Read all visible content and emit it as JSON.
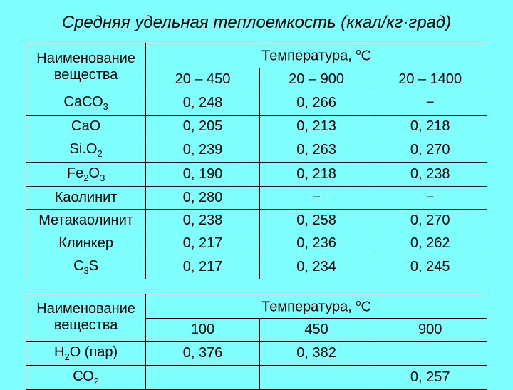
{
  "title": "Средняя удельная теплоемкость (ккал/кг·град)",
  "h1": {
    "name": "Наименование вещества",
    "temp": "Температура, ",
    "tempUnit": "С"
  },
  "t1": {
    "ranges": [
      "20 – 450",
      "20 – 900",
      "20 – 1400"
    ],
    "rows": [
      {
        "name": "СаСО",
        "sub": "3",
        "v": [
          "0, 248",
          "0, 266",
          "−"
        ]
      },
      {
        "name": "СаО",
        "sub": "",
        "v": [
          "0, 205",
          "0, 213",
          "0, 218"
        ]
      },
      {
        "name": "Si.O",
        "sub": "2",
        "v": [
          "0, 239",
          "0, 263",
          "0, 270"
        ]
      },
      {
        "name": "Fe",
        "sub": "2",
        "name2": "О",
        "sub2": "3",
        "v": [
          "0, 190",
          "0, 218",
          "0, 238"
        ]
      },
      {
        "name": "Каолинит",
        "sub": "",
        "v": [
          "0, 280",
          "−",
          "−"
        ]
      },
      {
        "name": "Метакаолинит",
        "sub": "",
        "v": [
          "0, 238",
          "0, 258",
          "0, 270"
        ]
      },
      {
        "name": "Клинкер",
        "sub": "",
        "v": [
          "0, 217",
          "0, 236",
          "0, 262"
        ]
      },
      {
        "name": "С",
        "sub": "3",
        "name2": "S",
        "v": [
          "0, 217",
          "0, 234",
          "0, 245"
        ]
      }
    ]
  },
  "t2": {
    "ranges": [
      "100",
      "450",
      "900"
    ],
    "rows": [
      {
        "name": "Н",
        "sub": "2",
        "name2": "О (пар)",
        "v": [
          "0, 376",
          "0, 382",
          ""
        ]
      },
      {
        "name": "СО",
        "sub": "2",
        "v": [
          "",
          "",
          "0, 257"
        ]
      }
    ]
  }
}
